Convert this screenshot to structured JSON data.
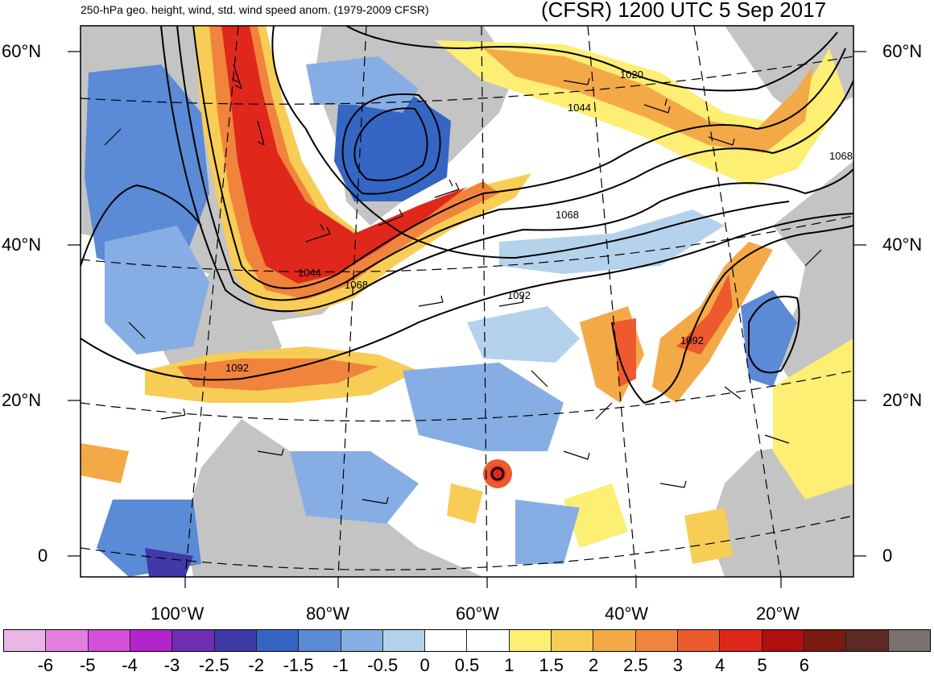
{
  "title": {
    "left": "250-hPa geo. height, wind, std. wind speed anom. (1979-2009 CFSR)",
    "right": "(CFSR) 1200 UTC 5 Sep 2017"
  },
  "lat_labels": [
    "60°N",
    "40°N",
    "20°N",
    "0"
  ],
  "lon_labels": [
    "100°W",
    "80°W",
    "60°W",
    "40°W",
    "20°W"
  ],
  "contour_labels": [
    "1020",
    "1044",
    "1068",
    "1068",
    "1044",
    "1068",
    "1092",
    "1092",
    "1092"
  ],
  "colorbar": {
    "colors": [
      "#e9b6e6",
      "#e27fe0",
      "#d44fd9",
      "#b324cc",
      "#6e2fb0",
      "#3f3aa8",
      "#3566c4",
      "#5b8ad6",
      "#86aee4",
      "#b4d2ec",
      "#ffffff",
      "#ffffff",
      "#fdee74",
      "#f8cd55",
      "#f4a947",
      "#f1843c",
      "#ed5a2d",
      "#e0271c",
      "#b00f0f",
      "#7a1a10",
      "#5c2a22",
      "#7a706e"
    ],
    "tick_labels": [
      "-6",
      "-5",
      "-4",
      "-3",
      "-2.5",
      "-2",
      "-1.5",
      "-1",
      "-0.5",
      "0",
      "0.5",
      "1",
      "1.5",
      "2",
      "2.5",
      "3",
      "4",
      "5",
      "6"
    ]
  },
  "colors": {
    "land": "#c4c4c4",
    "contour": "#000000",
    "jet_core": "#e0271c",
    "negative_anom": "#5b8ad6"
  }
}
